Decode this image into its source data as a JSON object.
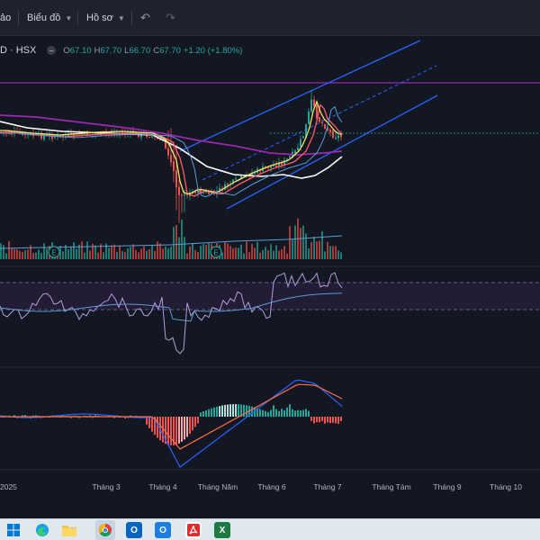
{
  "toolbar": {
    "partial_label": "ảo",
    "chart_menu_label": "Biểu đồ",
    "profile_menu_label": "Hồ sơ",
    "undo_icon": "undo-icon",
    "redo_icon": "redo-icon"
  },
  "legend": {
    "symbol": "D · HSX",
    "open_key": "O",
    "open": "67.10",
    "high_key": "H",
    "high": "67.70",
    "low_key": "L",
    "low": "66.70",
    "close_key": "C",
    "close": "67.70",
    "change": "+1.20 (+1.80%)"
  },
  "chart_data": {
    "type": "line",
    "style": "candlestick stock chart with moving averages, trend channel, volume, RSI and MACD panes",
    "x_axis_labels": [
      "2025",
      "Tháng 3",
      "Tháng 4",
      "Tháng Năm",
      "Tháng 6",
      "Tháng 7",
      "Tháng Tám",
      "Tháng 9",
      "Tháng 10"
    ],
    "earnings_markers": [
      "E",
      "E"
    ],
    "colors": {
      "up": "#26a69a",
      "down": "#ef5350",
      "ma_fast": "#f5e663",
      "ma_mid": "#ff5a6e",
      "ma_slow": "#ffffff",
      "ma_long": "#9c27b0",
      "channel": "#2962ff",
      "rsi": "#b39ddb",
      "macd": "#2962ff",
      "signal": "#ff7043"
    }
  },
  "taskbar": {
    "icons": [
      "windows-start-icon",
      "edge-icon",
      "file-explorer-icon",
      "chrome-icon",
      "outlook-icon",
      "outlook-new-icon",
      "acrobat-icon",
      "excel-icon"
    ]
  }
}
